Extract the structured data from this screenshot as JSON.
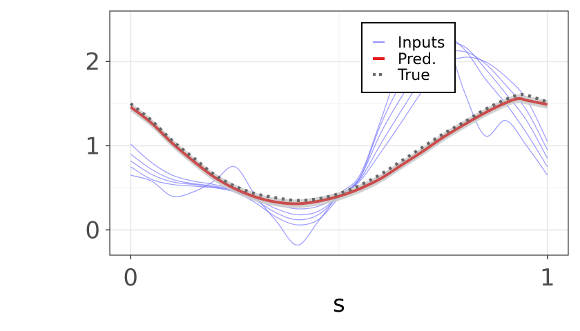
{
  "chart_data": {
    "type": "line",
    "title": "",
    "xlabel": "s",
    "ylabel": "",
    "xlim": [
      -0.05,
      1.05
    ],
    "ylim": [
      -0.3,
      2.6
    ],
    "xticks": [
      {
        "value": 0,
        "label": "0"
      },
      {
        "value": 1,
        "label": "1"
      }
    ],
    "yticks": [
      {
        "value": 0,
        "label": "0"
      },
      {
        "value": 1,
        "label": "1"
      },
      {
        "value": 2,
        "label": "2"
      }
    ],
    "grid": true,
    "legend_position": "top-right",
    "legend": [
      {
        "label": "Inputs",
        "style": "thin-line",
        "color": "#6b6bff"
      },
      {
        "label": "Pred.",
        "style": "thick-line",
        "color": "#e41a1c"
      },
      {
        "label": "True",
        "style": "dotted",
        "color": "#6a6a6a"
      }
    ],
    "colors": {
      "inputs": "#6b6bff",
      "pred": "#cc4c4c",
      "band": "#c9c9c9",
      "true": "#666666"
    },
    "true_curve": {
      "x": [
        0,
        0.05,
        0.1,
        0.15,
        0.2,
        0.25,
        0.3,
        0.35,
        0.4,
        0.45,
        0.5,
        0.55,
        0.6,
        0.65,
        0.7,
        0.75,
        0.8,
        0.85,
        0.9,
        0.93,
        0.95,
        1.0
      ],
      "y": [
        1.5,
        1.3,
        1.06,
        0.86,
        0.66,
        0.52,
        0.43,
        0.38,
        0.35,
        0.37,
        0.43,
        0.53,
        0.66,
        0.82,
        0.98,
        1.14,
        1.28,
        1.43,
        1.55,
        1.6,
        1.6,
        1.52
      ]
    },
    "pred": {
      "x": [
        0,
        0.05,
        0.1,
        0.15,
        0.2,
        0.25,
        0.3,
        0.35,
        0.4,
        0.45,
        0.5,
        0.55,
        0.6,
        0.65,
        0.7,
        0.75,
        0.8,
        0.85,
        0.9,
        0.93,
        0.95,
        1.0
      ],
      "y": [
        1.46,
        1.27,
        1.03,
        0.82,
        0.63,
        0.49,
        0.39,
        0.33,
        0.31,
        0.34,
        0.4,
        0.49,
        0.61,
        0.77,
        0.93,
        1.1,
        1.25,
        1.39,
        1.51,
        1.56,
        1.54,
        1.49
      ],
      "band_halfwidth": 0.05
    },
    "series": [
      {
        "x": [
          0,
          0.05,
          0.1,
          0.15,
          0.2,
          0.25,
          0.3,
          0.35,
          0.4,
          0.45,
          0.5,
          0.55,
          0.6,
          0.65,
          0.7,
          0.75,
          0.8,
          0.85,
          0.9,
          0.95,
          1.0
        ],
        "y": [
          0.65,
          0.58,
          0.4,
          0.45,
          0.58,
          0.75,
          0.4,
          0.1,
          -0.18,
          0.1,
          0.42,
          0.65,
          1.3,
          2.0,
          2.35,
          2.35,
          1.65,
          1.12,
          1.3,
          1.0,
          0.65
        ]
      },
      {
        "x": [
          0,
          0.05,
          0.1,
          0.15,
          0.2,
          0.25,
          0.3,
          0.35,
          0.4,
          0.45,
          0.5,
          0.55,
          0.6,
          0.65,
          0.7,
          0.75,
          0.8,
          0.85,
          0.9,
          0.95,
          1.0
        ],
        "y": [
          0.75,
          0.6,
          0.54,
          0.52,
          0.5,
          0.45,
          0.32,
          0.15,
          0.06,
          0.12,
          0.38,
          0.62,
          1.25,
          1.75,
          2.1,
          2.3,
          2.15,
          1.8,
          1.5,
          1.15,
          0.75
        ]
      },
      {
        "x": [
          0,
          0.05,
          0.1,
          0.15,
          0.2,
          0.25,
          0.3,
          0.35,
          0.4,
          0.45,
          0.5,
          0.55,
          0.6,
          0.65,
          0.7,
          0.75,
          0.8,
          0.85,
          0.9,
          0.95,
          1.0
        ],
        "y": [
          0.82,
          0.66,
          0.57,
          0.54,
          0.51,
          0.46,
          0.35,
          0.2,
          0.12,
          0.18,
          0.4,
          0.62,
          1.15,
          1.58,
          1.95,
          2.2,
          2.18,
          1.92,
          1.62,
          1.3,
          0.85
        ]
      },
      {
        "x": [
          0,
          0.05,
          0.1,
          0.15,
          0.2,
          0.25,
          0.3,
          0.35,
          0.4,
          0.45,
          0.5,
          0.55,
          0.6,
          0.65,
          0.7,
          0.75,
          0.8,
          0.85,
          0.9,
          0.95,
          1.0
        ],
        "y": [
          0.9,
          0.72,
          0.6,
          0.55,
          0.52,
          0.47,
          0.37,
          0.25,
          0.18,
          0.22,
          0.4,
          0.6,
          1.02,
          1.42,
          1.8,
          2.08,
          2.12,
          1.98,
          1.72,
          1.42,
          0.95
        ]
      },
      {
        "x": [
          0,
          0.05,
          0.1,
          0.15,
          0.2,
          0.25,
          0.3,
          0.35,
          0.4,
          0.45,
          0.5,
          0.55,
          0.6,
          0.65,
          0.7,
          0.75,
          0.8,
          0.85,
          0.9,
          0.95,
          1.0
        ],
        "y": [
          1.02,
          0.8,
          0.65,
          0.58,
          0.54,
          0.48,
          0.39,
          0.3,
          0.25,
          0.28,
          0.4,
          0.58,
          0.92,
          1.28,
          1.65,
          1.95,
          2.05,
          2.0,
          1.82,
          1.55,
          1.05
        ]
      }
    ]
  }
}
